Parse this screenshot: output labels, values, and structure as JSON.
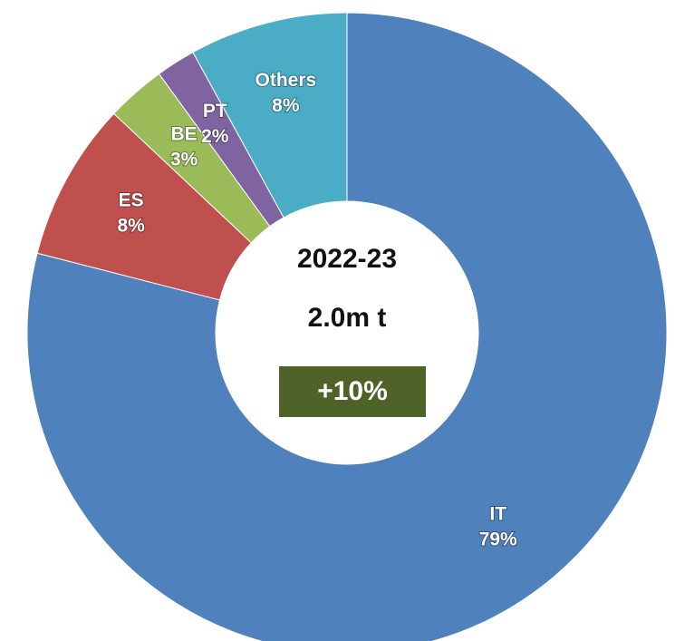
{
  "chart_data": {
    "type": "donut",
    "categories": [
      "IT",
      "ES",
      "BE",
      "PT",
      "Others"
    ],
    "values": [
      79,
      8,
      3,
      2,
      8
    ],
    "value_labels": [
      "79%",
      "8%",
      "3%",
      "2%",
      "8%"
    ],
    "colors": [
      "#4f81bd",
      "#c0504d",
      "#9bbb59",
      "#8064a2",
      "#4bacc6"
    ],
    "center_title": "2022-23",
    "center_subtitle": "2.0m t",
    "change": "+10%",
    "change_color": "#4f6228"
  }
}
